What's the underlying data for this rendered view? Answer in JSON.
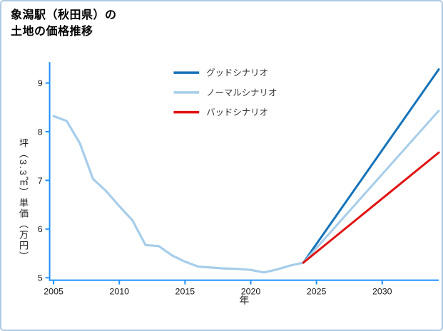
{
  "chart_data": {
    "type": "line",
    "title": "象潟駅（秋田県）の土地の価格推移",
    "title_lines": [
      "象潟駅（秋田県）の",
      "土地の価格推移"
    ],
    "xlabel": "年",
    "ylabel": "坪（3.3㎡）単価（万円）",
    "xlim": [
      2004.7,
      2034.3
    ],
    "ylim": [
      4.95,
      9.4
    ],
    "xticks": [
      2005,
      2010,
      2015,
      2020,
      2025,
      2030
    ],
    "yticks": [
      5,
      6,
      7,
      8,
      9
    ],
    "grid": false,
    "axis_color": "#1e90ff",
    "tick_label_color": "#1a1a1a",
    "legend_text_color": "#333333",
    "legend_position": "upper-center-inside",
    "legend": [
      {
        "label": "グッドシナリオ",
        "color": "#1673b9"
      },
      {
        "label": "ノーマルシナリオ",
        "color": "#a6cdea"
      },
      {
        "label": "バッドシナリオ",
        "color": "#e01212"
      }
    ],
    "series": [
      {
        "id": "historical-price",
        "color": "#a6cdea",
        "width": 3.2,
        "x": [
          2005,
          2006,
          2007,
          2008,
          2009,
          2010,
          2011,
          2012,
          2013,
          2014,
          2015,
          2016,
          2017,
          2018,
          2019,
          2020,
          2021,
          2022,
          2023,
          2024
        ],
        "y": [
          8.32,
          8.22,
          7.76,
          7.03,
          6.78,
          6.47,
          6.18,
          5.67,
          5.65,
          5.46,
          5.33,
          5.23,
          5.21,
          5.19,
          5.18,
          5.16,
          5.11,
          5.17,
          5.25,
          5.31
        ]
      },
      {
        "id": "good-scenario",
        "label": "グッドシナリオ",
        "color": "#1673b9",
        "width": 3,
        "x": [
          2024,
          2034.3
        ],
        "y": [
          5.31,
          9.28
        ]
      },
      {
        "id": "normal-scenario",
        "label": "ノーマルシナリオ",
        "color": "#a6cdea",
        "width": 3,
        "x": [
          2024,
          2034.3
        ],
        "y": [
          5.31,
          8.43
        ]
      },
      {
        "id": "bad-scenario",
        "label": "バッドシナリオ",
        "color": "#e01212",
        "width": 3,
        "x": [
          2024,
          2034.3
        ],
        "y": [
          5.31,
          7.57
        ]
      }
    ]
  }
}
